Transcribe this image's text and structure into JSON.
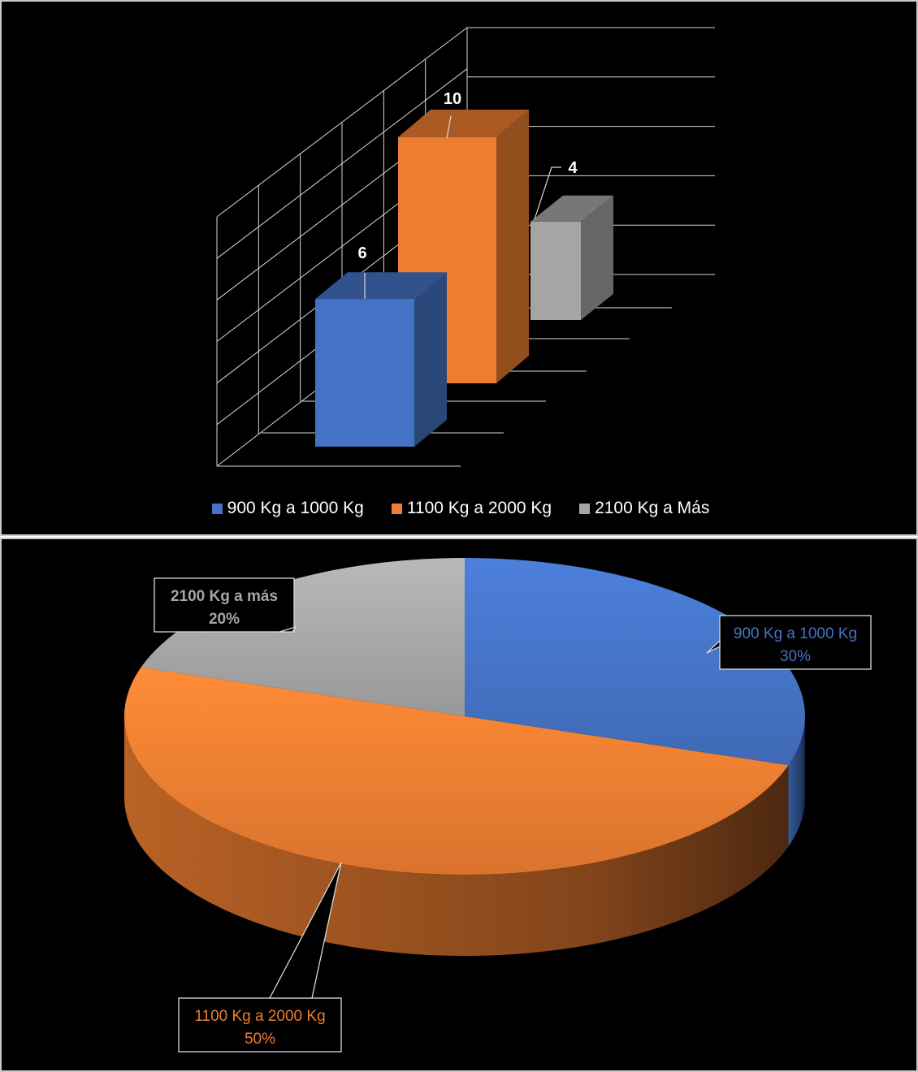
{
  "chart_data": [
    {
      "type": "bar",
      "style": "3d-column",
      "categories": [
        "900 Kg a 1000 Kg",
        "1100 Kg a 2000 Kg",
        "2100 Kg a Más"
      ],
      "values": [
        6,
        10,
        4
      ],
      "data_labels": [
        "6",
        "10",
        "4"
      ],
      "colors": [
        "#4472C4",
        "#ED7D31",
        "#A5A5A5"
      ],
      "ylim": [
        0,
        12
      ],
      "grid": true,
      "legend": {
        "position": "bottom",
        "entries": [
          "900 Kg a 1000 Kg",
          "1100 Kg a 2000 Kg",
          "2100 Kg a Más"
        ]
      }
    },
    {
      "type": "pie",
      "style": "3d",
      "categories": [
        "900 Kg a 1000 Kg",
        "1100 Kg a 2000 Kg",
        "2100 Kg a más"
      ],
      "values": [
        30,
        50,
        20
      ],
      "labels": [
        {
          "name": "900 Kg a 1000 Kg",
          "percent": "30%"
        },
        {
          "name": "1100 Kg a 2000 Kg",
          "percent": "50%"
        },
        {
          "name": "2100 Kg a más",
          "percent": "20%"
        }
      ],
      "colors": [
        "#4472C4",
        "#ED7D31",
        "#A5A5A5"
      ]
    }
  ]
}
